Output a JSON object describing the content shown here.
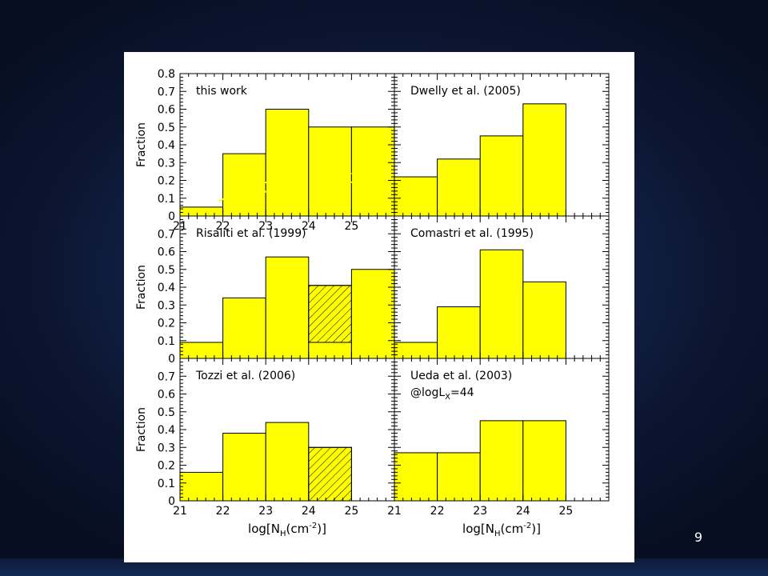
{
  "slide": {
    "page_number": "9"
  },
  "annotations": {
    "thin_label": "T h i n",
    "thick_label": "Thick"
  },
  "chart_data": [
    {
      "type": "bar",
      "title": "this work",
      "ylabel": "Fraction",
      "xlabel": "log[N_H(cm^-2)]",
      "bin_edges": [
        21,
        22,
        23,
        24,
        25,
        26
      ],
      "values": [
        0.05,
        0.35,
        0.6,
        0.5,
        0.5
      ],
      "hatched_portion": [
        null,
        null,
        null,
        null,
        null
      ],
      "xlim": [
        21,
        26
      ],
      "ylim": [
        0,
        0.8
      ],
      "y_ticks": [
        "0",
        "0.1",
        "0.2",
        "0.3",
        "0.4",
        "0.5",
        "0.6",
        "0.7",
        "0.8"
      ],
      "x_ticks": [
        "21",
        "22",
        "23",
        "24",
        "25"
      ]
    },
    {
      "type": "bar",
      "title": "Dwelly et al. (2005)",
      "ylabel": "",
      "xlabel": "log[N_H(cm^-2)]",
      "bin_edges": [
        21,
        22,
        23,
        24,
        25
      ],
      "values": [
        0.22,
        0.32,
        0.45,
        0.63
      ],
      "hatched_portion": [
        null,
        null,
        null,
        null
      ],
      "xlim": [
        21,
        26
      ],
      "ylim": [
        0,
        0.8
      ]
    },
    {
      "type": "bar",
      "title": "Risaliti et al. (1999)",
      "ylabel": "Fraction",
      "xlabel": "log[N_H(cm^-2)]",
      "bin_edges": [
        21,
        22,
        23,
        24,
        25,
        26
      ],
      "values": [
        0.09,
        0.34,
        0.57,
        0.41,
        0.5
      ],
      "hatched_portion": [
        null,
        null,
        null,
        [
          0.09,
          0.41
        ],
        null
      ],
      "xlim": [
        21,
        26
      ],
      "ylim": [
        0,
        0.8
      ],
      "y_ticks": [
        "0",
        "0.1",
        "0.2",
        "0.3",
        "0.4",
        "0.5",
        "0.6",
        "0.7"
      ]
    },
    {
      "type": "bar",
      "title": "Comastri et al. (1995)",
      "ylabel": "",
      "xlabel": "log[N_H(cm^-2)]",
      "bin_edges": [
        21,
        22,
        23,
        24,
        25
      ],
      "values": [
        0.09,
        0.29,
        0.61,
        0.43
      ],
      "hatched_portion": [
        null,
        null,
        null,
        null
      ],
      "xlim": [
        21,
        26
      ],
      "ylim": [
        0,
        0.8
      ]
    },
    {
      "type": "bar",
      "title": "Tozzi et al. (2006)",
      "ylabel": "Fraction",
      "xlabel": "log[N_H(cm^-2)]",
      "bin_edges": [
        21,
        22,
        23,
        24,
        25
      ],
      "values": [
        0.16,
        0.38,
        0.44,
        0.3
      ],
      "hatched_portion": [
        null,
        null,
        null,
        [
          0,
          0.3
        ]
      ],
      "xlim": [
        21,
        26
      ],
      "ylim": [
        0,
        0.8
      ],
      "y_ticks": [
        "0",
        "0.1",
        "0.2",
        "0.3",
        "0.4",
        "0.5",
        "0.6",
        "0.7"
      ],
      "x_ticks": [
        "21",
        "22",
        "23",
        "24",
        "25"
      ]
    },
    {
      "type": "bar",
      "title": "Ueda et al. (2003)",
      "subtitle": "@logL",
      "subtitle_sub": "X",
      "subtitle_tail": "=44",
      "ylabel": "",
      "xlabel": "log[N_H(cm^-2)]",
      "bin_edges": [
        21,
        22,
        23,
        24,
        25
      ],
      "values": [
        0.27,
        0.27,
        0.45,
        0.45
      ],
      "hatched_portion": [
        null,
        null,
        null,
        null
      ],
      "xlim": [
        21,
        26
      ],
      "ylim": [
        0,
        0.8
      ],
      "x_ticks": [
        "21",
        "22",
        "23",
        "24",
        "25"
      ]
    }
  ],
  "x_axis_label": {
    "prefix": "log[N",
    "sub": "H",
    "mid": "(cm",
    "sup": "-2",
    "suffix": ")]"
  },
  "colors": {
    "bar_fill": "#ffff00",
    "bar_stroke": "#000000",
    "overlay_text": "#ffff00"
  }
}
